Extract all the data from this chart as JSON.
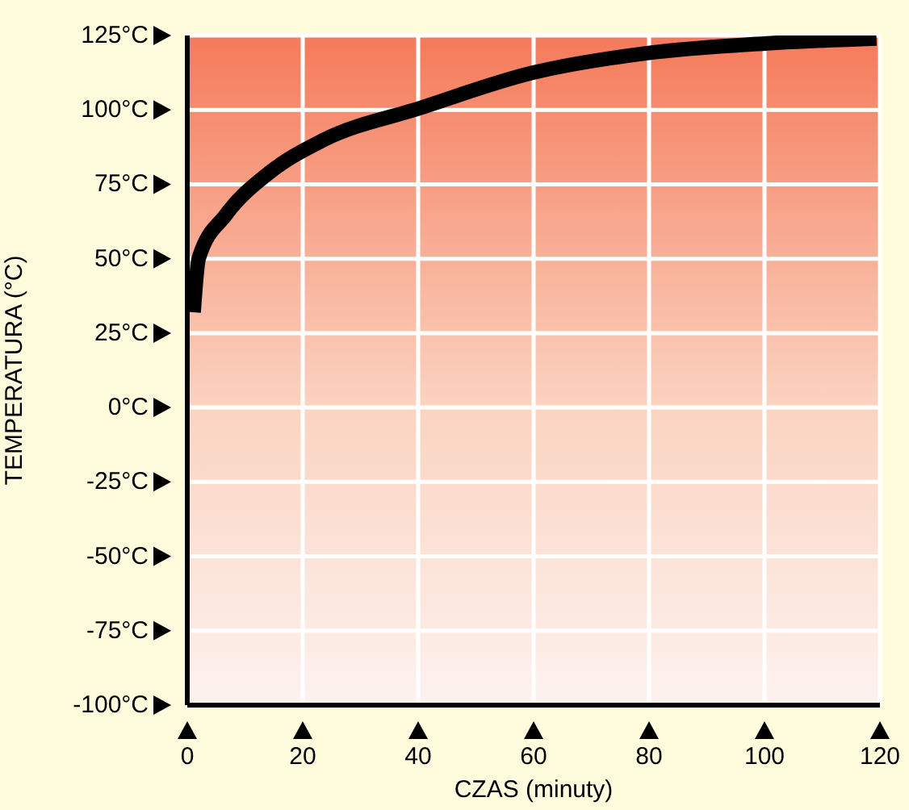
{
  "chart_data": {
    "type": "line",
    "xlabel": "CZAS (minuty)",
    "ylabel": "TEMPERATURA (°C)",
    "x": [
      1.1,
      2,
      6.7,
      14.2,
      23.5,
      40.3,
      59.9,
      79.4,
      100,
      119.4
    ],
    "series": [
      {
        "color": "#000000",
        "values": [
          32,
          50.2,
          64.8,
          78.9,
          89.8,
          100.6,
          112.5,
          119,
          122.3,
          124
        ]
      }
    ],
    "xlim": [
      0,
      120
    ],
    "xticks": [
      0,
      20,
      40,
      60,
      80,
      100,
      120
    ],
    "ylim": [
      -100,
      125
    ],
    "yticks": [
      {
        "value": -100,
        "label": "-100°C"
      },
      {
        "value": -75,
        "label": "-75°C"
      },
      {
        "value": -50,
        "label": "-50°C"
      },
      {
        "value": -25,
        "label": "-25°C"
      },
      {
        "value": 0,
        "label": "0°C"
      },
      {
        "value": 25,
        "label": "25°C"
      },
      {
        "value": 50,
        "label": "50°C"
      },
      {
        "value": 75,
        "label": "75°C"
      },
      {
        "value": 100,
        "label": "100°C"
      },
      {
        "value": 125,
        "label": "125°C"
      }
    ],
    "grid": true,
    "marker": "none",
    "line_style": "solid"
  }
}
